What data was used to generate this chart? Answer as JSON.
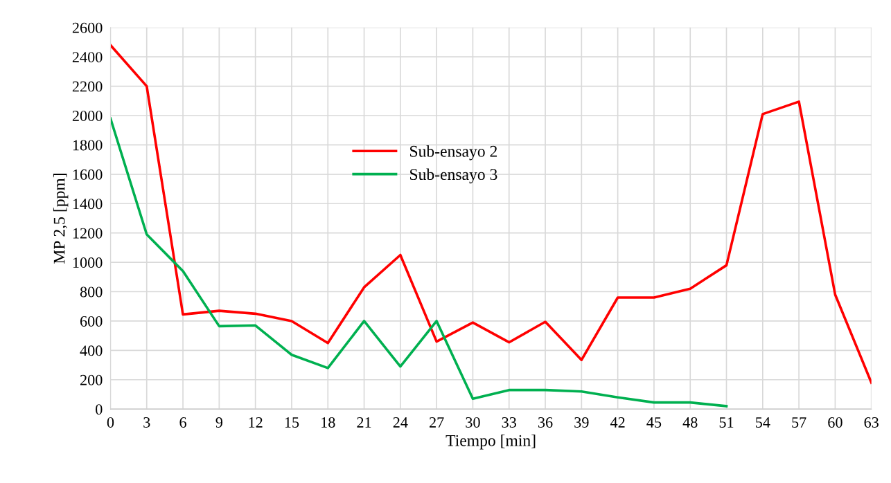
{
  "chart_data": {
    "type": "line",
    "xlabel": "Tiempo [min]",
    "ylabel": "MP 2,5 [ppm]",
    "x": [
      0,
      3,
      6,
      9,
      12,
      15,
      18,
      21,
      24,
      27,
      30,
      33,
      36,
      39,
      42,
      45,
      48,
      51,
      54,
      57,
      60,
      63
    ],
    "series": [
      {
        "name": "Sub-ensayo 2",
        "color": "#ff0000",
        "values": [
          2480,
          2200,
          645,
          670,
          650,
          600,
          450,
          830,
          1050,
          460,
          590,
          455,
          595,
          335,
          760,
          760,
          820,
          980,
          2010,
          2095,
          780,
          180
        ]
      },
      {
        "name": "Sub-ensayo 3",
        "color": "#00b050",
        "values": [
          1980,
          1190,
          940,
          565,
          570,
          370,
          280,
          600,
          290,
          600,
          70,
          130,
          130,
          120,
          80,
          45,
          45,
          20,
          null,
          null,
          null,
          null
        ]
      }
    ],
    "xlim": [
      0,
      63
    ],
    "xticks": [
      0,
      3,
      6,
      9,
      12,
      15,
      18,
      21,
      24,
      27,
      30,
      33,
      36,
      39,
      42,
      45,
      48,
      51,
      54,
      57,
      60,
      63
    ],
    "ylim": [
      0,
      2600
    ],
    "yticks": [
      0,
      200,
      400,
      600,
      800,
      1000,
      1200,
      1400,
      1600,
      1800,
      2000,
      2200,
      2400,
      2600
    ],
    "grid": true,
    "legend": "top left",
    "marker": "none",
    "line_style": "solid"
  }
}
